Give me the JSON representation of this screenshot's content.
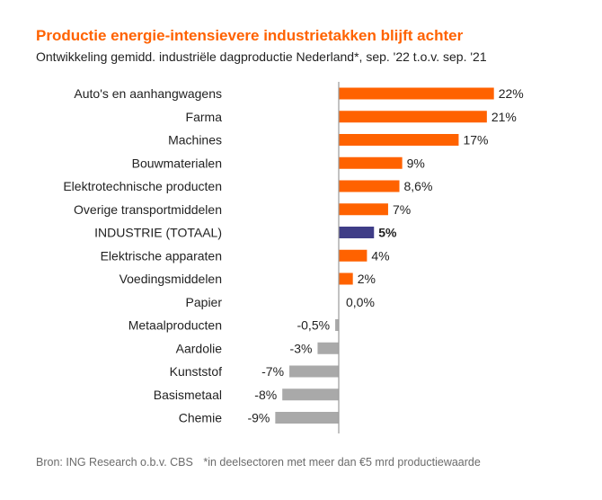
{
  "title": "Productie energie-intensievere industrietakken blijft achter",
  "subtitle": "Ontwikkeling gemidd. industriële dagproductie Nederland*, sep. '22 t.o.v. sep. '21",
  "footer": {
    "source": "Bron: ING Research o.b.v. CBS",
    "note": "*in deelsectoren met meer dan €5 mrd productiewaarde"
  },
  "colors": {
    "positive": "#FF6200",
    "total": "#3F3D87",
    "negative": "#A9A9A9",
    "axis": "#999999"
  },
  "chart_data": {
    "type": "bar",
    "orientation": "horizontal",
    "categories": [
      "Auto's en aanhangwagens",
      "Farma",
      "Machines",
      "Bouwmaterialen",
      "Elektrotechnische producten",
      "Overige transportmiddelen",
      "INDUSTRIE (TOTAAL)",
      "Elektrische apparaten",
      "Voedingsmiddelen",
      "Papier",
      "Metaalproducten",
      "Aardolie",
      "Kunststof",
      "Basismetaal",
      "Chemie"
    ],
    "values": [
      22,
      21,
      17,
      9,
      8.6,
      7,
      5,
      4,
      2,
      0.0,
      -0.5,
      -3,
      -7,
      -8,
      -9
    ],
    "value_labels": [
      "22%",
      "21%",
      "17%",
      "9%",
      "8,6%",
      "7%",
      "5%",
      "4%",
      "2%",
      "0,0%",
      "-0,5%",
      "-3%",
      "-7%",
      "-8%",
      "-9%"
    ],
    "highlight": "INDUSTRIE (TOTAAL)",
    "xlim": [
      -9,
      22
    ],
    "grid": false,
    "legend": "none"
  }
}
